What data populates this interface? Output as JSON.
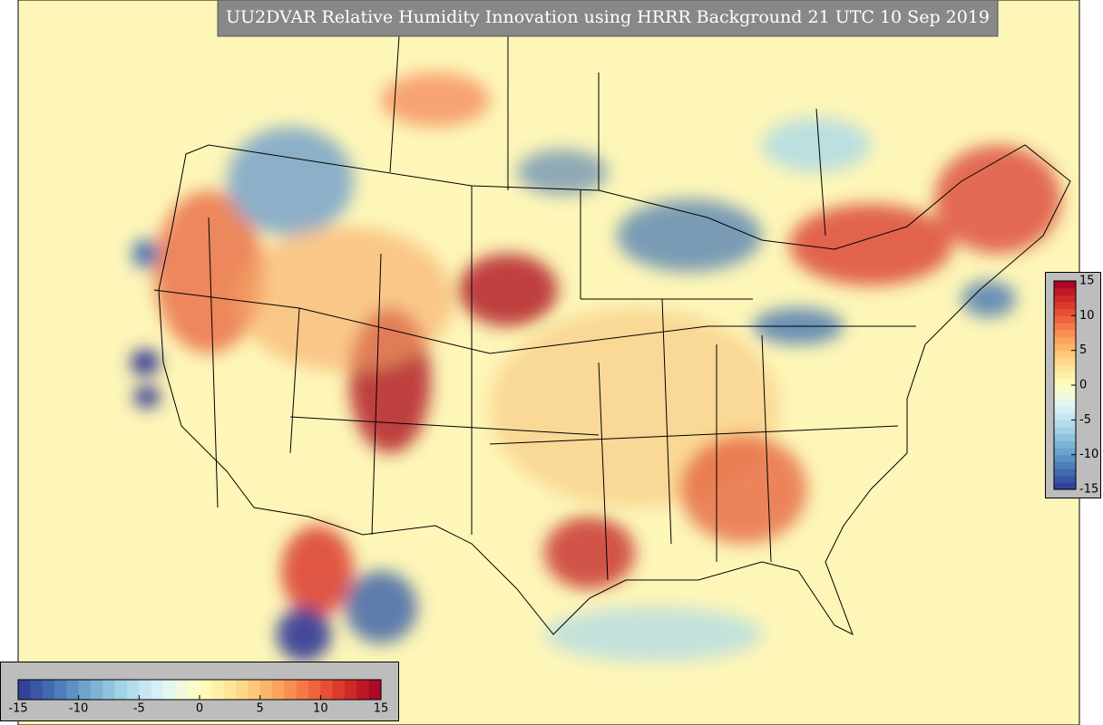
{
  "title": "UU2DVAR Relative Humidity Innovation using HRRR Background 21 UTC 10 Sep 2019",
  "colormap": [
    "#313695",
    "#4575b4",
    "#74add1",
    "#abd9e9",
    "#e0f3f8",
    "#ffffbf",
    "#fee090",
    "#fdae61",
    "#f46d43",
    "#d73027",
    "#a50026"
  ],
  "colorbars": [
    {
      "orientation": "vertical",
      "lim": [
        -15,
        15
      ],
      "ticks": [
        -15,
        -10,
        -5,
        0,
        5,
        10,
        15
      ]
    },
    {
      "orientation": "horizontal",
      "lim": [
        -15,
        15
      ],
      "ticks": [
        -15,
        -10,
        -5,
        0,
        5,
        10,
        15
      ]
    }
  ]
}
